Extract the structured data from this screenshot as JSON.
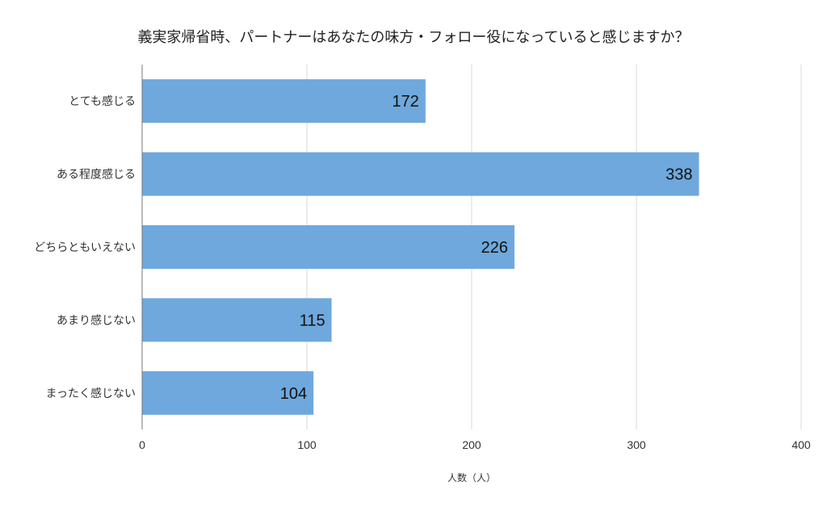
{
  "chart_data": {
    "type": "bar",
    "orientation": "horizontal",
    "title": "義実家帰省時、パートナーはあなたの味方・フォロー役になっていると感じますか？",
    "xlabel": "人数（人）",
    "ylabel": "",
    "categories": [
      "とても感じる",
      "ある程度感じる",
      "どちらともいえない",
      "あまり感じない",
      "まったく感じない"
    ],
    "values": [
      172,
      338,
      226,
      115,
      104
    ],
    "xlim": [
      0,
      400
    ],
    "xticks": [
      0,
      100,
      200,
      300,
      400
    ],
    "grid": true,
    "legend": "none",
    "bar_color": "#6fa8dc"
  }
}
